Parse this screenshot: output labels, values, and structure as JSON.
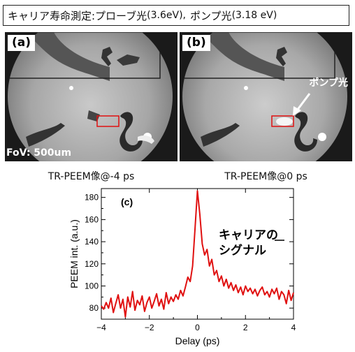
{
  "title": {
    "main": "キャリア寿命測定:プローブ光",
    "probe": "(3.6eV),",
    "pump_prefix": "ポンプ光",
    "pump": "(3.18 eV)"
  },
  "panels": {
    "a": {
      "label": "(a)",
      "fov": "FoV: 500um",
      "caption": "TR-PEEM像@-4 ps"
    },
    "b": {
      "label": "(b)",
      "arrow_label": "ポンプ光",
      "caption": "TR-PEEM像@0 ps"
    }
  },
  "colors": {
    "marker_box": "#e01010",
    "trace": "#e01010",
    "arrow": "#ffffff"
  },
  "chart_data": {
    "type": "line",
    "panel_label": "(c)",
    "annotation_line1": "キャリアの",
    "annotation_line2": "シグナル",
    "xlabel": "Delay (ps)",
    "ylabel": "PEEM int. (a.u.)",
    "xlim": [
      -4,
      4
    ],
    "ylim": [
      70,
      188
    ],
    "xticks": [
      -4,
      -2,
      0,
      2,
      4
    ],
    "yticks": [
      80,
      100,
      120,
      140,
      160,
      180
    ],
    "grid": false,
    "series": [
      {
        "x": [
          -4.0,
          -3.9,
          -3.8,
          -3.7,
          -3.6,
          -3.5,
          -3.4,
          -3.3,
          -3.2,
          -3.1,
          -3.0,
          -2.9,
          -2.8,
          -2.7,
          -2.6,
          -2.5,
          -2.4,
          -2.3,
          -2.2,
          -2.1,
          -2.0,
          -1.9,
          -1.8,
          -1.7,
          -1.6,
          -1.5,
          -1.4,
          -1.3,
          -1.2,
          -1.1,
          -1.0,
          -0.9,
          -0.8,
          -0.7,
          -0.6,
          -0.5,
          -0.4,
          -0.3,
          -0.2,
          -0.1,
          0.0,
          0.1,
          0.2,
          0.3,
          0.4,
          0.5,
          0.6,
          0.7,
          0.8,
          0.9,
          1.0,
          1.1,
          1.2,
          1.3,
          1.4,
          1.5,
          1.6,
          1.7,
          1.8,
          1.9,
          2.0,
          2.1,
          2.2,
          2.3,
          2.4,
          2.5,
          2.6,
          2.7,
          2.8,
          2.9,
          3.0,
          3.1,
          3.2,
          3.3,
          3.4,
          3.5,
          3.6,
          3.7,
          3.8,
          3.9,
          4.0
        ],
        "y": [
          82,
          79,
          85,
          80,
          89,
          76,
          84,
          92,
          80,
          88,
          72,
          90,
          81,
          95,
          78,
          87,
          83,
          91,
          77,
          85,
          90,
          80,
          86,
          93,
          82,
          88,
          79,
          94,
          84,
          90,
          86,
          92,
          88,
          96,
          91,
          99,
          108,
          104,
          118,
          152,
          186,
          165,
          138,
          128,
          133,
          118,
          124,
          110,
          114,
          104,
          109,
          100,
          106,
          98,
          103,
          96,
          101,
          94,
          99,
          92,
          100,
          95,
          98,
          93,
          97,
          91,
          96,
          99,
          92,
          95,
          90,
          97,
          93,
          98,
          88,
          95,
          92,
          84,
          96,
          87,
          94
        ]
      }
    ]
  }
}
